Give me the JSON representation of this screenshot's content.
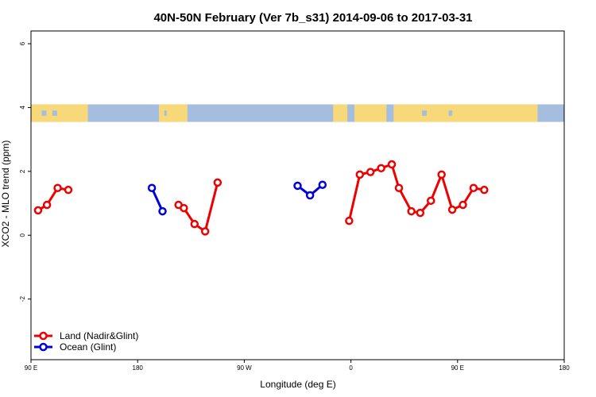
{
  "chart_data": {
    "type": "line",
    "title": "40N-50N February (Ver 7b_s31)   2014-09-06 to 2017-03-31",
    "xlabel": "Longitude (deg E)",
    "ylabel": "XCO2 - MLO trend (ppm)",
    "xlim": [
      -270,
      30
    ],
    "ylim": [
      -3.9,
      6.4
    ],
    "x_ticks": [
      {
        "value": -270,
        "label": "90 E"
      },
      {
        "value": -210,
        "label": "180"
      },
      {
        "value": -150,
        "label": "90 W"
      },
      {
        "value": -90,
        "label": "0"
      },
      {
        "value": -30,
        "label": "90 E"
      },
      {
        "value": 30,
        "label": "180"
      }
    ],
    "y_ticks": [
      {
        "value": 6,
        "label": "6"
      },
      {
        "value": 4,
        "label": "4"
      },
      {
        "value": 2,
        "label": "2"
      },
      {
        "value": 0,
        "label": "0"
      },
      {
        "value": -2,
        "label": "-2"
      }
    ],
    "map_band": {
      "y_from": 3.55,
      "y_to": 4.1,
      "land_color": "#f7d97a",
      "ocean_color": "#a5bddf"
    },
    "legend_position": "bottom-left",
    "series": [
      {
        "name": "Land (Nadir&Glint)",
        "color": "#ee0000",
        "segments": [
          [
            [
              -266,
              0.78
            ],
            [
              -261,
              0.95
            ],
            [
              -255,
              1.48
            ],
            [
              -249,
              1.42
            ]
          ],
          [
            [
              -187,
              0.95
            ],
            [
              -184,
              0.85
            ],
            [
              -178,
              0.35
            ],
            [
              -172,
              0.12
            ],
            [
              -165,
              1.65
            ]
          ],
          [
            [
              -91,
              0.45
            ],
            [
              -85,
              1.9
            ],
            [
              -79,
              1.98
            ],
            [
              -73,
              2.1
            ],
            [
              -67,
              2.22
            ],
            [
              -63,
              1.48
            ],
            [
              -56,
              0.75
            ],
            [
              -51,
              0.7
            ],
            [
              -45,
              1.08
            ],
            [
              -39,
              1.9
            ],
            [
              -33,
              0.8
            ],
            [
              -27,
              0.95
            ],
            [
              -21,
              1.48
            ],
            [
              -15,
              1.42
            ]
          ]
        ]
      },
      {
        "name": "Ocean (Glint)",
        "color": "#0000dd",
        "segments": [
          [
            [
              -202,
              1.48
            ],
            [
              -196,
              0.75
            ]
          ],
          [
            [
              -120,
              1.55
            ],
            [
              -113,
              1.25
            ],
            [
              -106,
              1.58
            ]
          ]
        ]
      }
    ]
  }
}
